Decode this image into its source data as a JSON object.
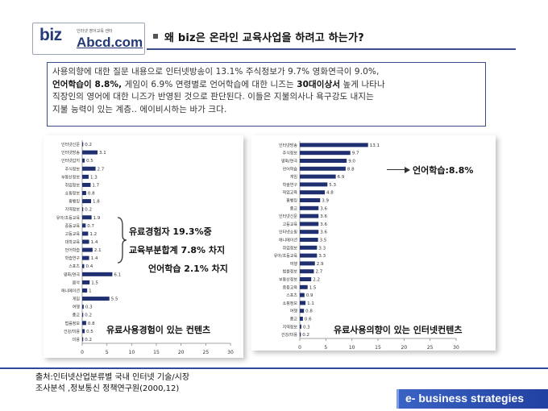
{
  "logo": {
    "biz": "biz",
    "sub": "인터넷 영어교육 센터",
    "abcd": "Abcd.com"
  },
  "title": "왜 biz은 온라인 교육사업을 하려고 하는가?",
  "summary": {
    "line1": "사용의향에 대한 질문 내용으로 인터넷방송이 13.1% 주식정보가 9.7% 영화연극이 9.0%,",
    "line2a": "언어학습이 8.8%,",
    "line2b": " 게임이 6.9% 연령별로 언어학습에 대한 니즈는 ",
    "line2c": "30대이상서",
    "line2d": " 높게 나타나",
    "line3": "직장인의 영어에 대한 니즈가 반영된 것으로 판단된다. 이들은 지불의사나 욕구강도 내지는",
    "line4": "지불 능력이 있는 계층.. 에이비시하는 바가 크다."
  },
  "annotations": {
    "left1": "유료경험자 19.3%중",
    "left2": "교육부분합계 7.8% 차지",
    "left3": "언어학습 2.1% 차지",
    "right1": "언어학습:8.8%"
  },
  "captions": {
    "left": "유료사용경험이 있는 컨텐츠",
    "right": "유료사용의향이 있는 인터넷컨텐츠"
  },
  "source": {
    "line1": "출처:인터넷산업분류별 국내 인터넷 기술/시장",
    "line2": "조사분석 ,정보통신 정책연구원(2000,12)"
  },
  "banner": "e- business strategies",
  "colors": {
    "bar": "#1f2f70",
    "accent": "#2e4a9e",
    "title_rule": "#3c4f8c"
  },
  "chart_data": [
    {
      "type": "bar",
      "orientation": "horizontal",
      "categories": [
        "인터넷신문",
        "인터넷방송",
        "인터넷갑지",
        "주식정보",
        "부동산정보",
        "취업정보",
        "쇼핑정보",
        "홈뱅킹",
        "지역정보",
        "유아/초등교육",
        "중등교육",
        "고등교육",
        "대학교육",
        "언어학습",
        "학습연구",
        "스포츠",
        "영화/연극",
        "음악",
        "애니메이션",
        "게임",
        "여행",
        "종교",
        "법률정보",
        "건강/미용",
        "미용"
      ],
      "values": [
        0.2,
        3.1,
        0.5,
        2.7,
        1.3,
        1.7,
        0.8,
        1.8,
        0.2,
        1.9,
        0.7,
        1.2,
        1.4,
        2.1,
        1.4,
        0.4,
        6.1,
        1.5,
        1.0,
        5.5,
        0.3,
        0.2,
        0.8,
        0.5,
        0.2
      ],
      "value_labels": [
        "0.2",
        "3.1",
        "0.5",
        "2.7",
        "1.3",
        "1.7",
        "0.8",
        "1.8",
        "0.2",
        "1.9",
        "0.7",
        "1.2",
        "1.4",
        "2.1",
        "1.4",
        "0.4",
        "6.1",
        "1.5",
        "1",
        "5.5",
        "0.3",
        "0.2",
        "0.8",
        "0.5",
        "0.2"
      ],
      "xlim": [
        0,
        30
      ],
      "xticks": [
        "0",
        "5",
        "10",
        "15",
        "20",
        "25",
        "30"
      ],
      "grid": false
    },
    {
      "type": "bar",
      "orientation": "horizontal",
      "categories": [
        "인터넷방송",
        "주식정보",
        "영화/연극",
        "언어학습",
        "게임",
        "학술연구",
        "직업교육",
        "홈뱅킹",
        "종교",
        "인터넷신문",
        "고등교육",
        "인터넷쇼핑",
        "애니메이션",
        "취업정보",
        "유아/초등교육",
        "여행",
        "법률정보",
        "부동산정보",
        "중등교육",
        "스포츠",
        "쇼핑정보",
        "여행",
        "종교",
        "지역정보",
        "건강/미용"
      ],
      "values": [
        13.1,
        9.7,
        9.0,
        8.8,
        6.9,
        5.3,
        4.8,
        3.9,
        3.6,
        3.6,
        3.6,
        3.6,
        3.5,
        3.3,
        3.3,
        2.9,
        2.7,
        2.2,
        1.5,
        0.9,
        1.1,
        0.8,
        0.6,
        0.3,
        0.2
      ],
      "value_labels": [
        "13.1",
        "9.7",
        "9.0",
        "8.8",
        "6.9",
        "5.3",
        "4.8",
        "3.9",
        "3.6",
        "3.6",
        "3.6",
        "3.6",
        "3.5",
        "3.3",
        "3.3",
        "2.9",
        "2.7",
        "2.2",
        "1.5",
        "0.9",
        "1.1",
        "0.8",
        "0.6",
        "0.3",
        "0.2"
      ],
      "xlim": [
        0,
        30
      ],
      "xticks": [
        "0",
        "5",
        "10",
        "15",
        "20",
        "25",
        "30"
      ],
      "grid": false
    }
  ]
}
